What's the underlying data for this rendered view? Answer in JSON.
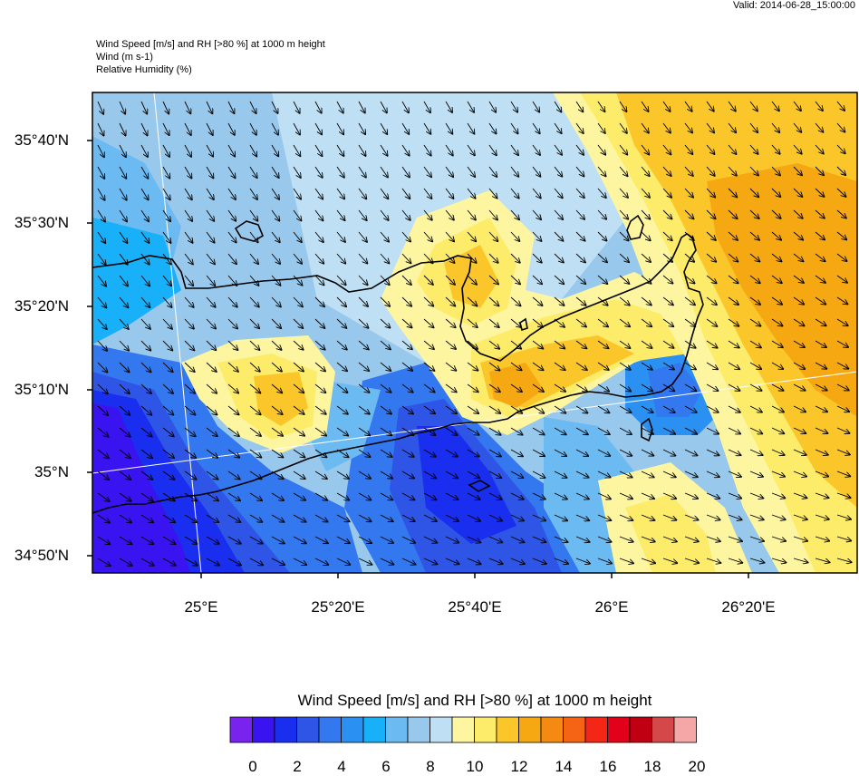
{
  "valid_time": "Valid: 2014-06-28_15:00:00",
  "header_lines": [
    "Wind Speed [m/s] and RH [>80 %] at 1000 m height",
    "Wind   (m s-1)",
    "Relative Humidity   (%)"
  ],
  "lat_labels": [
    "35°40'N",
    "35°30'N",
    "35°20'N",
    "35°10'N",
    "35°N",
    "34°50'N"
  ],
  "lon_labels": [
    "25°E",
    "25°20'E",
    "25°40'E",
    "26°E",
    "26°20'E"
  ],
  "colorbar": {
    "title": "Wind Speed [m/s] and RH [>80 %] at 1000 m height",
    "tick_labels": [
      "0",
      "2",
      "4",
      "6",
      "8",
      "10",
      "12",
      "14",
      "16",
      "18",
      "20"
    ],
    "colors": [
      "#7a22ee",
      "#3a14f0",
      "#1a2ef0",
      "#2f55e6",
      "#3378ee",
      "#2a90f2",
      "#18b0f8",
      "#6cbaf2",
      "#98c9ec",
      "#bfe0f4",
      "#fdf5a0",
      "#fdeb6a",
      "#fbc62a",
      "#f6a812",
      "#f58a12",
      "#f46414",
      "#f42616",
      "#e2001a",
      "#c00012",
      "#d4484a",
      "#f5a6a6"
    ]
  },
  "map": {
    "coastline_color": "#000000",
    "arrow_color": "#000000",
    "gridline_color": "#ffffff"
  }
}
